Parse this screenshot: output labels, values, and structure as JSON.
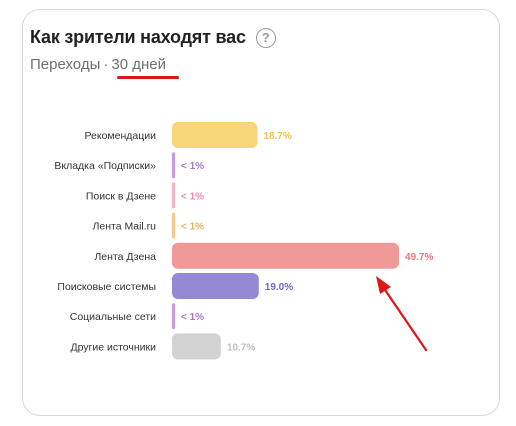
{
  "card": {
    "title": "Как зрители находят вас",
    "subtitle_prefix": "Переходы",
    "subtitle_separator": "·",
    "period": "30 дней"
  },
  "icons": {
    "help": "question-circle-icon",
    "help_glyph": "?"
  },
  "chart_data": {
    "type": "bar",
    "orientation": "horizontal",
    "unit": "%",
    "xlim": [
      0,
      50
    ],
    "grid": false,
    "categories": [
      "Рекомендации",
      "Вкладка «Подписки»",
      "Поиск в Дзене",
      "Лента Mail.ru",
      "Лента Дзена",
      "Поисковые системы",
      "Социальные сети",
      "Другие источники"
    ],
    "values": [
      18.7,
      0.5,
      0.5,
      0.5,
      49.7,
      19.0,
      0.5,
      10.7
    ],
    "value_labels": [
      "18.7%",
      "< 1%",
      "< 1%",
      "< 1%",
      "49.7%",
      "19.0%",
      "< 1%",
      "10.7%"
    ],
    "colors": [
      "#f9d57a",
      "#c79be3",
      "#f2b0c9",
      "#f6c98f",
      "#ef9a98",
      "#9589d6",
      "#c79be3",
      "#d2d2d2"
    ],
    "label_colors": [
      "#f0c054",
      "#a877cc",
      "#e88cae",
      "#ecaa61",
      "#e57a78",
      "#7267c4",
      "#a877cc",
      "#c2c2c2"
    ]
  }
}
